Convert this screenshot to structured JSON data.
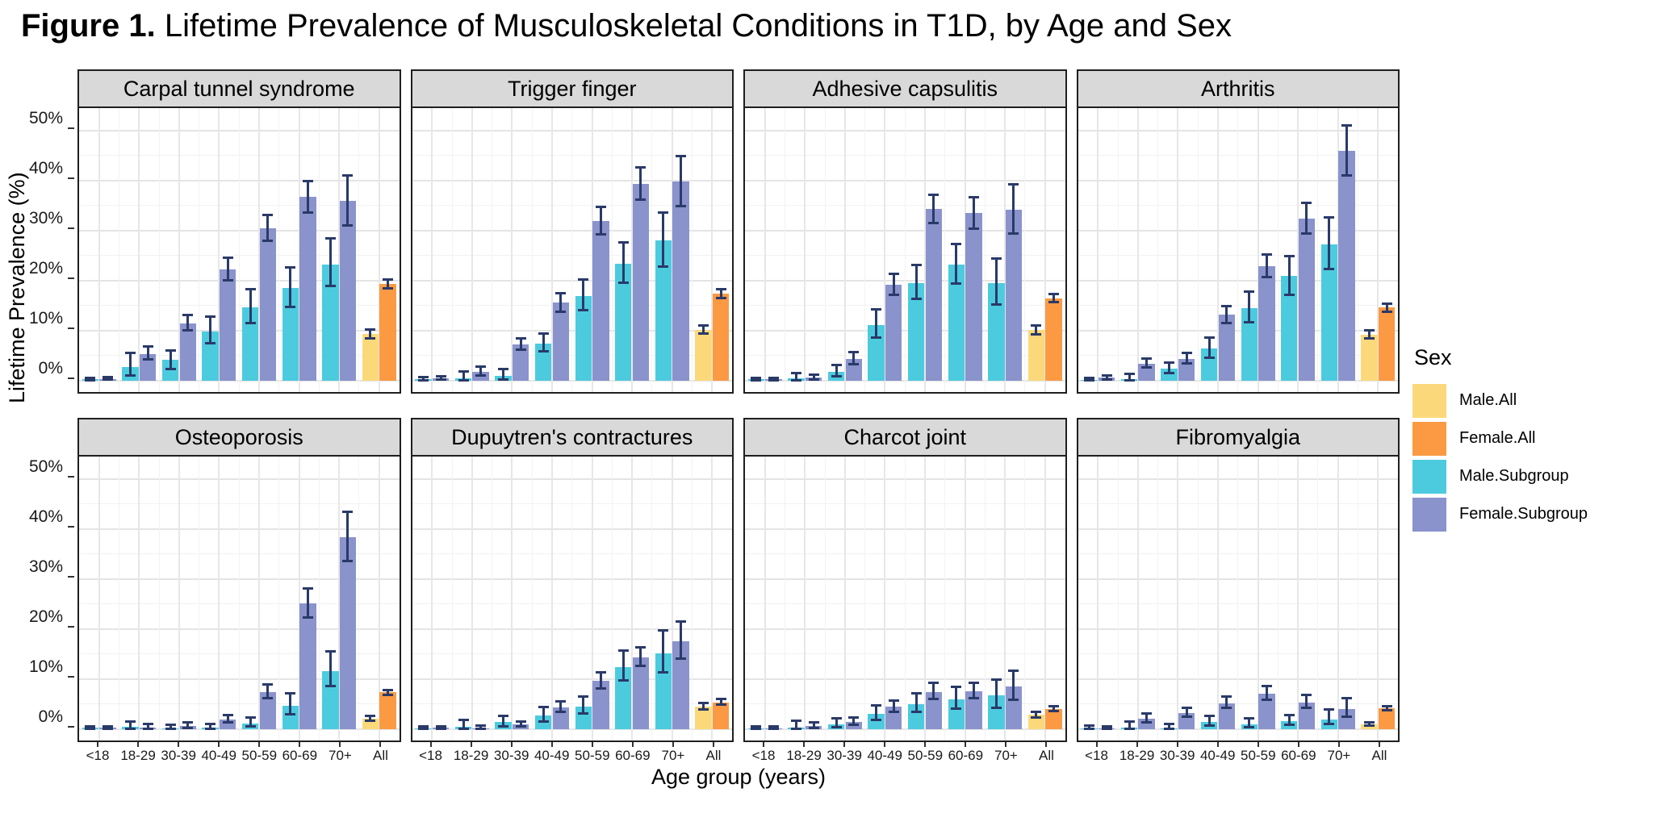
{
  "figure_title": {
    "bold": "Figure 1.",
    "rest": " Lifetime Prevalence of Musculoskeletal Conditions in T1D, by Age and Sex"
  },
  "axes": {
    "x_label": "Age group (years)",
    "y_label": "Lifetime Prevalence (%)",
    "y_ticks": [
      "0%",
      "10%",
      "20%",
      "30%",
      "40%",
      "50%"
    ],
    "y_tick_values": [
      0,
      10,
      20,
      30,
      40,
      50
    ]
  },
  "legend": {
    "title": "Sex",
    "entries": [
      {
        "label": "Male.All",
        "color": "#fbd97b"
      },
      {
        "label": "Female.All",
        "color": "#fb9a43"
      },
      {
        "label": "Male.Subgroup",
        "color": "#4ccbdf"
      },
      {
        "label": "Female.Subgroup",
        "color": "#8a93cc"
      }
    ]
  },
  "colors": {
    "male_all": "#fbd97b",
    "female_all": "#fb9a43",
    "male_subgroup": "#4ccbdf",
    "female_subgroup": "#8a93cc",
    "error_bar": "#2a3a68",
    "strip_background": "#d9d9d9",
    "panel_border": "#1f1f1f"
  },
  "chart_data": {
    "type": "bar",
    "layout": "facet-grid-2x4",
    "legend_position": "right",
    "grid": true,
    "ylim": [
      0,
      55
    ],
    "categories": [
      "<18",
      "18-29",
      "30-39",
      "40-49",
      "50-59",
      "60-69",
      "70+",
      "All"
    ],
    "series_names": [
      "Male.All",
      "Female.All",
      "Male.Subgroup",
      "Female.Subgroup"
    ],
    "panels": [
      {
        "title": "Carpal tunnel syndrome",
        "groups": [
          {
            "label": "<18",
            "male": {
              "v": 0.3,
              "lo": 0.1,
              "hi": 0.6
            },
            "female": {
              "v": 0.4,
              "lo": 0.2,
              "hi": 0.7
            }
          },
          {
            "label": "18-29",
            "male": {
              "v": 2.8,
              "lo": 1.0,
              "hi": 5.5
            },
            "female": {
              "v": 5.4,
              "lo": 4.3,
              "hi": 6.8
            }
          },
          {
            "label": "30-39",
            "male": {
              "v": 4.2,
              "lo": 2.3,
              "hi": 6.1
            },
            "female": {
              "v": 11.5,
              "lo": 10.1,
              "hi": 13.1
            }
          },
          {
            "label": "40-49",
            "male": {
              "v": 9.9,
              "lo": 7.5,
              "hi": 12.9
            },
            "female": {
              "v": 22.2,
              "lo": 20.1,
              "hi": 24.6
            }
          },
          {
            "label": "50-59",
            "male": {
              "v": 14.7,
              "lo": 11.6,
              "hi": 18.3
            },
            "female": {
              "v": 30.5,
              "lo": 28.0,
              "hi": 33.2
            }
          },
          {
            "label": "60-69",
            "male": {
              "v": 18.5,
              "lo": 14.8,
              "hi": 22.7
            },
            "female": {
              "v": 36.7,
              "lo": 33.6,
              "hi": 40.0
            }
          },
          {
            "label": "70+",
            "male": {
              "v": 23.3,
              "lo": 18.9,
              "hi": 28.4
            },
            "female": {
              "v": 35.9,
              "lo": 31.1,
              "hi": 41.0
            }
          },
          {
            "label": "All",
            "male": {
              "v": 9.3,
              "lo": 8.5,
              "hi": 10.3
            },
            "female": {
              "v": 19.3,
              "lo": 18.4,
              "hi": 20.2
            }
          }
        ]
      },
      {
        "title": "Trigger finger",
        "groups": [
          {
            "label": "<18",
            "male": {
              "v": 0.3,
              "lo": 0.1,
              "hi": 0.7
            },
            "female": {
              "v": 0.5,
              "lo": 0.2,
              "hi": 0.9
            }
          },
          {
            "label": "18-29",
            "male": {
              "v": 0.5,
              "lo": 0.1,
              "hi": 1.8
            },
            "female": {
              "v": 1.8,
              "lo": 1.0,
              "hi": 2.9
            }
          },
          {
            "label": "30-39",
            "male": {
              "v": 1.0,
              "lo": 0.3,
              "hi": 2.4
            },
            "female": {
              "v": 7.3,
              "lo": 6.2,
              "hi": 8.5
            }
          },
          {
            "label": "40-49",
            "male": {
              "v": 7.5,
              "lo": 5.9,
              "hi": 9.4
            },
            "female": {
              "v": 15.6,
              "lo": 13.8,
              "hi": 17.5
            }
          },
          {
            "label": "50-59",
            "male": {
              "v": 17.0,
              "lo": 14.1,
              "hi": 20.3
            },
            "female": {
              "v": 31.9,
              "lo": 29.2,
              "hi": 34.7
            }
          },
          {
            "label": "60-69",
            "male": {
              "v": 23.4,
              "lo": 19.6,
              "hi": 27.6
            },
            "female": {
              "v": 39.4,
              "lo": 36.2,
              "hi": 42.7
            }
          },
          {
            "label": "70+",
            "male": {
              "v": 28.0,
              "lo": 22.8,
              "hi": 33.7
            },
            "female": {
              "v": 39.8,
              "lo": 34.9,
              "hi": 44.9
            }
          },
          {
            "label": "All",
            "male": {
              "v": 10.2,
              "lo": 9.4,
              "hi": 11.1
            },
            "female": {
              "v": 17.4,
              "lo": 16.5,
              "hi": 18.3
            }
          }
        ]
      },
      {
        "title": "Adhesive capsulitis",
        "groups": [
          {
            "label": "<18",
            "male": {
              "v": 0.3,
              "lo": 0.1,
              "hi": 0.6
            },
            "female": {
              "v": 0.3,
              "lo": 0.1,
              "hi": 0.6
            }
          },
          {
            "label": "18-29",
            "male": {
              "v": 0.5,
              "lo": 0.1,
              "hi": 1.6
            },
            "female": {
              "v": 0.6,
              "lo": 0.2,
              "hi": 1.2
            }
          },
          {
            "label": "30-39",
            "male": {
              "v": 1.8,
              "lo": 0.9,
              "hi": 3.1
            },
            "female": {
              "v": 4.4,
              "lo": 3.3,
              "hi": 5.7
            }
          },
          {
            "label": "40-49",
            "male": {
              "v": 11.2,
              "lo": 8.6,
              "hi": 14.3
            },
            "female": {
              "v": 19.2,
              "lo": 17.2,
              "hi": 21.4
            }
          },
          {
            "label": "50-59",
            "male": {
              "v": 19.5,
              "lo": 16.3,
              "hi": 23.1
            },
            "female": {
              "v": 34.3,
              "lo": 31.5,
              "hi": 37.2
            }
          },
          {
            "label": "60-69",
            "male": {
              "v": 23.2,
              "lo": 19.5,
              "hi": 27.3
            },
            "female": {
              "v": 33.5,
              "lo": 30.4,
              "hi": 36.7
            }
          },
          {
            "label": "70+",
            "male": {
              "v": 19.5,
              "lo": 15.3,
              "hi": 24.4
            },
            "female": {
              "v": 34.2,
              "lo": 29.5,
              "hi": 39.2
            }
          },
          {
            "label": "All",
            "male": {
              "v": 10.1,
              "lo": 9.2,
              "hi": 11.0
            },
            "female": {
              "v": 16.5,
              "lo": 15.7,
              "hi": 17.4
            }
          }
        ]
      },
      {
        "title": "Arthritis",
        "groups": [
          {
            "label": "<18",
            "male": {
              "v": 0.2,
              "lo": 0.05,
              "hi": 0.5
            },
            "female": {
              "v": 0.6,
              "lo": 0.3,
              "hi": 1.1
            }
          },
          {
            "label": "18-29",
            "male": {
              "v": 0.4,
              "lo": 0.1,
              "hi": 1.3
            },
            "female": {
              "v": 3.4,
              "lo": 2.6,
              "hi": 4.4
            }
          },
          {
            "label": "30-39",
            "male": {
              "v": 2.4,
              "lo": 1.5,
              "hi": 3.6
            },
            "female": {
              "v": 4.4,
              "lo": 3.5,
              "hi": 5.5
            }
          },
          {
            "label": "40-49",
            "male": {
              "v": 6.4,
              "lo": 4.6,
              "hi": 8.7
            },
            "female": {
              "v": 13.2,
              "lo": 11.6,
              "hi": 15.0
            }
          },
          {
            "label": "50-59",
            "male": {
              "v": 14.5,
              "lo": 11.7,
              "hi": 17.8
            },
            "female": {
              "v": 22.9,
              "lo": 20.7,
              "hi": 25.3
            }
          },
          {
            "label": "60-69",
            "male": {
              "v": 20.9,
              "lo": 17.2,
              "hi": 24.9
            },
            "female": {
              "v": 32.4,
              "lo": 29.5,
              "hi": 35.5
            }
          },
          {
            "label": "70+",
            "male": {
              "v": 27.3,
              "lo": 22.4,
              "hi": 32.7
            },
            "female": {
              "v": 46.0,
              "lo": 41.1,
              "hi": 51.1
            }
          },
          {
            "label": "All",
            "male": {
              "v": 9.2,
              "lo": 8.4,
              "hi": 10.1
            },
            "female": {
              "v": 14.6,
              "lo": 13.8,
              "hi": 15.4
            }
          }
        ]
      },
      {
        "title": "Osteoporosis",
        "groups": [
          {
            "label": "<18",
            "male": {
              "v": 0.3,
              "lo": 0.1,
              "hi": 0.6
            },
            "female": {
              "v": 0.3,
              "lo": 0.1,
              "hi": 0.6
            }
          },
          {
            "label": "18-29",
            "male": {
              "v": 0.5,
              "lo": 0.1,
              "hi": 1.5
            },
            "female": {
              "v": 0.4,
              "lo": 0.1,
              "hi": 1.0
            }
          },
          {
            "label": "30-39",
            "male": {
              "v": 0.2,
              "lo": 0.05,
              "hi": 0.9
            },
            "female": {
              "v": 0.7,
              "lo": 0.3,
              "hi": 1.4
            }
          },
          {
            "label": "40-49",
            "male": {
              "v": 0.4,
              "lo": 0.1,
              "hi": 1.1
            },
            "female": {
              "v": 2.0,
              "lo": 1.4,
              "hi": 2.9
            }
          },
          {
            "label": "50-59",
            "male": {
              "v": 1.1,
              "lo": 0.5,
              "hi": 2.4
            },
            "female": {
              "v": 7.4,
              "lo": 6.2,
              "hi": 8.9
            }
          },
          {
            "label": "60-69",
            "male": {
              "v": 4.7,
              "lo": 3.0,
              "hi": 7.2
            },
            "female": {
              "v": 25.1,
              "lo": 22.4,
              "hi": 28.1
            }
          },
          {
            "label": "70+",
            "male": {
              "v": 11.6,
              "lo": 8.7,
              "hi": 15.6
            },
            "female": {
              "v": 38.4,
              "lo": 33.7,
              "hi": 43.4
            }
          },
          {
            "label": "All",
            "male": {
              "v": 2.1,
              "lo": 1.7,
              "hi": 2.7
            },
            "female": {
              "v": 7.4,
              "lo": 6.8,
              "hi": 7.9
            }
          }
        ]
      },
      {
        "title": "Dupuytren's contractures",
        "groups": [
          {
            "label": "<18",
            "male": {
              "v": 0.2,
              "lo": 0.05,
              "hi": 0.5
            },
            "female": {
              "v": 0.3,
              "lo": 0.1,
              "hi": 0.6
            }
          },
          {
            "label": "18-29",
            "male": {
              "v": 0.5,
              "lo": 0.1,
              "hi": 1.9
            },
            "female": {
              "v": 0.2,
              "lo": 0.05,
              "hi": 0.8
            }
          },
          {
            "label": "30-39",
            "male": {
              "v": 1.4,
              "lo": 0.6,
              "hi": 2.7
            },
            "female": {
              "v": 0.9,
              "lo": 0.5,
              "hi": 1.6
            }
          },
          {
            "label": "40-49",
            "male": {
              "v": 2.7,
              "lo": 1.5,
              "hi": 4.4
            },
            "female": {
              "v": 4.4,
              "lo": 3.4,
              "hi": 5.6
            }
          },
          {
            "label": "50-59",
            "male": {
              "v": 4.5,
              "lo": 3.1,
              "hi": 6.5
            },
            "female": {
              "v": 9.6,
              "lo": 8.1,
              "hi": 11.4
            }
          },
          {
            "label": "60-69",
            "male": {
              "v": 12.5,
              "lo": 9.8,
              "hi": 15.8
            },
            "female": {
              "v": 14.4,
              "lo": 12.6,
              "hi": 16.4
            }
          },
          {
            "label": "70+",
            "male": {
              "v": 15.2,
              "lo": 11.4,
              "hi": 19.8
            },
            "female": {
              "v": 17.6,
              "lo": 14.1,
              "hi": 21.6
            }
          },
          {
            "label": "All",
            "male": {
              "v": 4.5,
              "lo": 3.9,
              "hi": 5.2
            },
            "female": {
              "v": 5.4,
              "lo": 4.9,
              "hi": 6.0
            }
          }
        ]
      },
      {
        "title": "Charcot joint",
        "groups": [
          {
            "label": "<18",
            "male": {
              "v": 0.2,
              "lo": 0.05,
              "hi": 0.6
            },
            "female": {
              "v": 0.15,
              "lo": 0.03,
              "hi": 0.5
            }
          },
          {
            "label": "18-29",
            "male": {
              "v": 0.4,
              "lo": 0.1,
              "hi": 1.7
            },
            "female": {
              "v": 0.6,
              "lo": 0.2,
              "hi": 1.3
            }
          },
          {
            "label": "30-39",
            "male": {
              "v": 1.0,
              "lo": 0.4,
              "hi": 2.1
            },
            "female": {
              "v": 1.5,
              "lo": 0.9,
              "hi": 2.3
            }
          },
          {
            "label": "40-49",
            "male": {
              "v": 3.1,
              "lo": 1.9,
              "hi": 4.8
            },
            "female": {
              "v": 4.5,
              "lo": 3.5,
              "hi": 5.7
            }
          },
          {
            "label": "50-59",
            "male": {
              "v": 5.0,
              "lo": 3.4,
              "hi": 7.2
            },
            "female": {
              "v": 7.5,
              "lo": 6.1,
              "hi": 9.2
            }
          },
          {
            "label": "60-69",
            "male": {
              "v": 6.0,
              "lo": 4.1,
              "hi": 8.5
            },
            "female": {
              "v": 7.6,
              "lo": 6.2,
              "hi": 9.2
            }
          },
          {
            "label": "70+",
            "male": {
              "v": 6.7,
              "lo": 4.3,
              "hi": 9.9
            },
            "female": {
              "v": 8.5,
              "lo": 5.9,
              "hi": 11.7
            }
          },
          {
            "label": "All",
            "male": {
              "v": 2.9,
              "lo": 2.4,
              "hi": 3.5
            },
            "female": {
              "v": 4.1,
              "lo": 3.6,
              "hi": 4.6
            }
          }
        ]
      },
      {
        "title": "Fibromyalgia",
        "groups": [
          {
            "label": "<18",
            "male": {
              "v": 0.2,
              "lo": 0.04,
              "hi": 0.7
            },
            "female": {
              "v": 0.2,
              "lo": 0.04,
              "hi": 0.6
            }
          },
          {
            "label": "18-29",
            "male": {
              "v": 0.3,
              "lo": 0.05,
              "hi": 1.5
            },
            "female": {
              "v": 2.1,
              "lo": 1.4,
              "hi": 3.1
            }
          },
          {
            "label": "30-39",
            "male": {
              "v": 0.2,
              "lo": 0.03,
              "hi": 1.0
            },
            "female": {
              "v": 3.2,
              "lo": 2.5,
              "hi": 4.2
            }
          },
          {
            "label": "40-49",
            "male": {
              "v": 1.5,
              "lo": 0.8,
              "hi": 2.7
            },
            "female": {
              "v": 5.2,
              "lo": 4.2,
              "hi": 6.5
            }
          },
          {
            "label": "50-59",
            "male": {
              "v": 1.0,
              "lo": 0.4,
              "hi": 2.2
            },
            "female": {
              "v": 7.1,
              "lo": 5.9,
              "hi": 8.6
            }
          },
          {
            "label": "60-69",
            "male": {
              "v": 1.6,
              "lo": 0.9,
              "hi": 2.9
            },
            "female": {
              "v": 5.4,
              "lo": 4.3,
              "hi": 6.8
            }
          },
          {
            "label": "70+",
            "male": {
              "v": 2.0,
              "lo": 1.0,
              "hi": 3.9
            },
            "female": {
              "v": 4.0,
              "lo": 2.5,
              "hi": 6.2
            }
          },
          {
            "label": "All",
            "male": {
              "v": 0.9,
              "lo": 0.7,
              "hi": 1.3
            },
            "female": {
              "v": 4.2,
              "lo": 3.8,
              "hi": 4.6
            }
          }
        ]
      }
    ]
  }
}
